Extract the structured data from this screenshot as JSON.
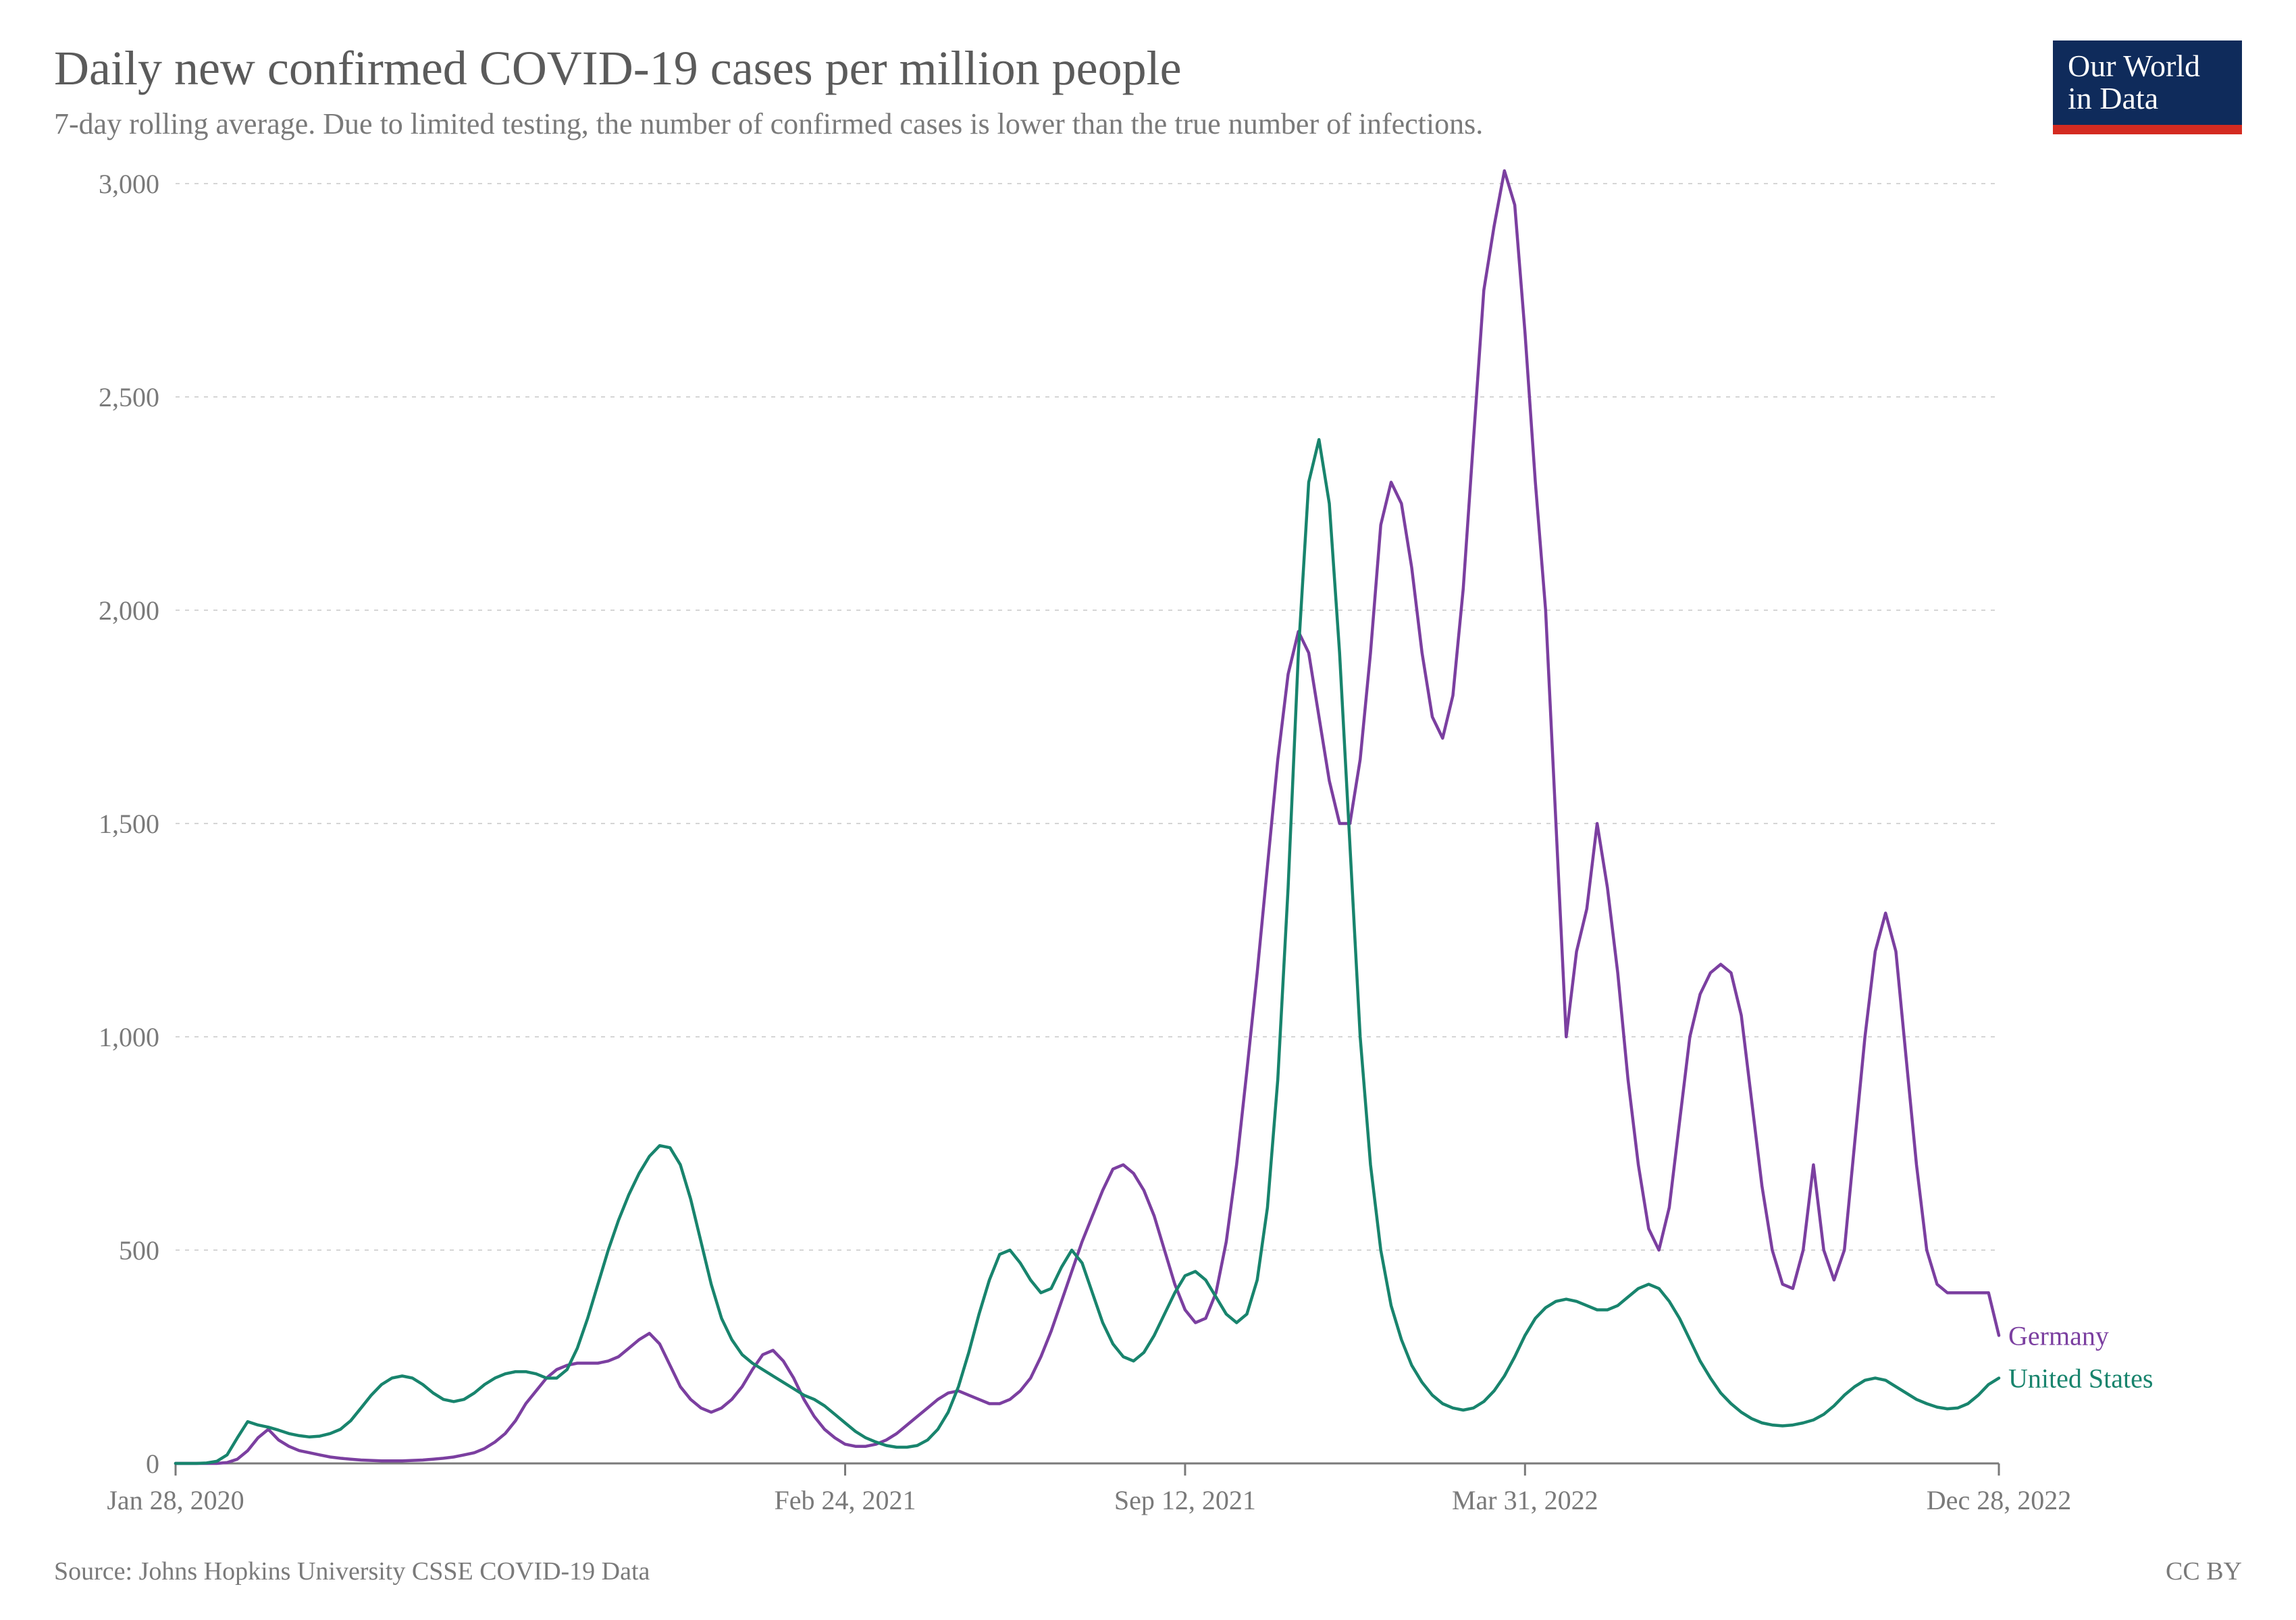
{
  "header": {
    "title": "Daily new confirmed COVID-19 cases per million people",
    "subtitle": "7-day rolling average. Due to limited testing, the number of confirmed cases is lower than the true number of infections."
  },
  "logo": {
    "line1": "Our World",
    "line2": "in Data",
    "bg_top": "#0f2b5b",
    "bg_bottom": "#d42b21",
    "text_color": "#ffffff"
  },
  "footer": {
    "source": "Source: Johns Hopkins University CSSE COVID-19 Data",
    "license": "CC BY"
  },
  "chart": {
    "type": "line",
    "background_color": "#ffffff",
    "grid_color": "#d5d5d5",
    "axis_color": "#7a7a7a",
    "tick_label_color": "#7a7a7a",
    "tick_label_fontsize": 40,
    "line_width": 4.5,
    "x": {
      "domain_index": [
        0,
        177
      ],
      "tick_positions": [
        0,
        65,
        98,
        131,
        177
      ],
      "tick_labels": [
        "Jan 28, 2020",
        "Feb 24, 2021",
        "Sep 12, 2021",
        "Mar 31, 2022",
        "Dec 28, 2022"
      ]
    },
    "y": {
      "lim": [
        0,
        3000
      ],
      "tick_step": 500,
      "tick_labels": [
        "0",
        "500",
        "1,000",
        "1,500",
        "2,000",
        "2,500",
        "3,000"
      ]
    },
    "series": [
      {
        "name": "Germany",
        "color": "#7b3fa0",
        "label": "Germany",
        "values": [
          0,
          0,
          0,
          0,
          0,
          2,
          10,
          30,
          60,
          80,
          55,
          40,
          30,
          25,
          20,
          15,
          12,
          10,
          8,
          7,
          6,
          6,
          6,
          7,
          8,
          10,
          12,
          15,
          20,
          25,
          35,
          50,
          70,
          100,
          140,
          170,
          200,
          220,
          230,
          235,
          235,
          235,
          240,
          250,
          270,
          290,
          305,
          280,
          230,
          180,
          150,
          130,
          120,
          130,
          150,
          180,
          220,
          255,
          265,
          240,
          200,
          150,
          110,
          80,
          60,
          45,
          40,
          40,
          45,
          55,
          70,
          90,
          110,
          130,
          150,
          165,
          170,
          160,
          150,
          140,
          140,
          150,
          170,
          200,
          250,
          310,
          380,
          450,
          520,
          580,
          640,
          690,
          700,
          680,
          640,
          580,
          500,
          420,
          360,
          330,
          340,
          400,
          520,
          700,
          920,
          1150,
          1400,
          1650,
          1850,
          1950,
          1900,
          1750,
          1600,
          1500,
          1500,
          1650,
          1900,
          2200,
          2300,
          2250,
          2100,
          1900,
          1750,
          1700,
          1800,
          2050,
          2400,
          2750,
          2900,
          3030,
          2950,
          2650,
          2300,
          2000,
          1500,
          1000,
          1200,
          1300,
          1500,
          1350,
          1150,
          900,
          700,
          550,
          500,
          600,
          800,
          1000,
          1100,
          1150,
          1170,
          1150,
          1050,
          850,
          650,
          500,
          420,
          410,
          500,
          700,
          500,
          430,
          500,
          750,
          1000,
          1200,
          1290,
          1200,
          950,
          700,
          500,
          420,
          400,
          400,
          400,
          400,
          400,
          300
        ]
      },
      {
        "name": "United States",
        "color": "#18846d",
        "label": "United States",
        "values": [
          0,
          0,
          0,
          1,
          5,
          20,
          60,
          98,
          90,
          85,
          78,
          70,
          65,
          62,
          64,
          70,
          80,
          100,
          130,
          160,
          185,
          200,
          205,
          200,
          185,
          165,
          150,
          145,
          150,
          165,
          185,
          200,
          210,
          215,
          215,
          210,
          200,
          200,
          220,
          270,
          340,
          420,
          500,
          570,
          630,
          680,
          720,
          745,
          740,
          700,
          620,
          520,
          420,
          340,
          290,
          255,
          235,
          220,
          205,
          190,
          175,
          160,
          150,
          135,
          115,
          95,
          75,
          60,
          50,
          42,
          38,
          38,
          42,
          55,
          80,
          120,
          180,
          260,
          350,
          430,
          490,
          500,
          470,
          430,
          400,
          410,
          460,
          500,
          470,
          400,
          330,
          280,
          250,
          240,
          260,
          300,
          350,
          400,
          440,
          450,
          430,
          390,
          350,
          330,
          350,
          430,
          600,
          900,
          1350,
          1900,
          2300,
          2400,
          2250,
          1900,
          1450,
          1000,
          700,
          500,
          370,
          290,
          230,
          190,
          160,
          140,
          130,
          125,
          130,
          145,
          170,
          205,
          250,
          300,
          340,
          365,
          380,
          385,
          380,
          370,
          360,
          360,
          370,
          390,
          410,
          420,
          410,
          380,
          340,
          290,
          240,
          200,
          165,
          140,
          120,
          105,
          95,
          90,
          88,
          90,
          95,
          102,
          115,
          135,
          160,
          180,
          195,
          200,
          195,
          180,
          165,
          150,
          140,
          132,
          128,
          130,
          140,
          160,
          185,
          200
        ]
      }
    ],
    "series_label_offset_x": 14,
    "series_label_positions": [
      {
        "name": "Germany",
        "y_value": 300
      },
      {
        "name": "United States",
        "y_value": 200
      }
    ]
  }
}
